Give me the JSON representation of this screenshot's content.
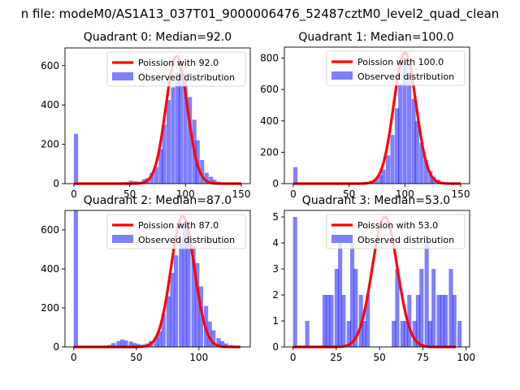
{
  "figure": {
    "title": "n file: modeM0/AS1A13_037T01_9000006476_52487cztM0_level2_quad_clean",
    "colors": {
      "hist": "#0000ff",
      "hist_alpha": 0.5,
      "poisson": "#ff0000",
      "text": "#000000"
    }
  },
  "chart_data": [
    {
      "type": "bar+line",
      "title": "Quadrant 0: Median=92.0",
      "median": 92.0,
      "xlim": [
        -8,
        158
      ],
      "ylim": [
        0,
        690
      ],
      "xticks": [
        0,
        50,
        100,
        150
      ],
      "yticks": [
        0,
        200,
        400,
        600
      ],
      "bin_width": 3.75,
      "poisson_peak": 648,
      "legend": {
        "placement": "upper right",
        "entries": [
          "Poission with 92.0",
          "Observed distribution"
        ]
      },
      "bins": [
        {
          "x": 0,
          "count": 253
        },
        {
          "x": 22,
          "count": 3
        },
        {
          "x": 30,
          "count": 3
        },
        {
          "x": 38,
          "count": 5
        },
        {
          "x": 45,
          "count": 8
        },
        {
          "x": 49,
          "count": 15
        },
        {
          "x": 53,
          "count": 12
        },
        {
          "x": 57,
          "count": 10
        },
        {
          "x": 61,
          "count": 22
        },
        {
          "x": 64,
          "count": 28
        },
        {
          "x": 68,
          "count": 55
        },
        {
          "x": 72,
          "count": 85
        },
        {
          "x": 76,
          "count": 175
        },
        {
          "x": 79,
          "count": 300
        },
        {
          "x": 83,
          "count": 425
        },
        {
          "x": 87,
          "count": 490
        },
        {
          "x": 91,
          "count": 565
        },
        {
          "x": 94,
          "count": 620
        },
        {
          "x": 98,
          "count": 560
        },
        {
          "x": 102,
          "count": 440
        },
        {
          "x": 106,
          "count": 325
        },
        {
          "x": 109,
          "count": 220
        },
        {
          "x": 113,
          "count": 120
        },
        {
          "x": 117,
          "count": 55
        },
        {
          "x": 121,
          "count": 35
        },
        {
          "x": 124,
          "count": 20
        },
        {
          "x": 128,
          "count": 10
        },
        {
          "x": 132,
          "count": 6
        },
        {
          "x": 136,
          "count": 4
        },
        {
          "x": 140,
          "count": 3
        },
        {
          "x": 145,
          "count": 2
        }
      ]
    },
    {
      "type": "bar+line",
      "title": "Quadrant 1: Median=100.0",
      "median": 100.0,
      "xlim": [
        -8,
        158
      ],
      "ylim": [
        0,
        870
      ],
      "xticks": [
        0,
        50,
        100,
        150
      ],
      "yticks": [
        0,
        200,
        400,
        600,
        800
      ],
      "bin_width": 3.75,
      "poisson_peak": 835,
      "legend": {
        "placement": "upper right",
        "entries": [
          "Poission with 100.0",
          "Observed distribution"
        ]
      },
      "bins": [
        {
          "x": 0,
          "count": 105
        },
        {
          "x": 30,
          "count": 3
        },
        {
          "x": 45,
          "count": 4
        },
        {
          "x": 53,
          "count": 5
        },
        {
          "x": 61,
          "count": 8
        },
        {
          "x": 64,
          "count": 12
        },
        {
          "x": 68,
          "count": 18
        },
        {
          "x": 72,
          "count": 30
        },
        {
          "x": 76,
          "count": 55
        },
        {
          "x": 79,
          "count": 90
        },
        {
          "x": 83,
          "count": 180
        },
        {
          "x": 87,
          "count": 310
        },
        {
          "x": 91,
          "count": 480
        },
        {
          "x": 94,
          "count": 640
        },
        {
          "x": 98,
          "count": 780
        },
        {
          "x": 102,
          "count": 690
        },
        {
          "x": 106,
          "count": 540
        },
        {
          "x": 109,
          "count": 400
        },
        {
          "x": 113,
          "count": 260
        },
        {
          "x": 117,
          "count": 150
        },
        {
          "x": 121,
          "count": 80
        },
        {
          "x": 124,
          "count": 45
        },
        {
          "x": 128,
          "count": 25
        },
        {
          "x": 132,
          "count": 12
        },
        {
          "x": 136,
          "count": 8
        },
        {
          "x": 140,
          "count": 4
        },
        {
          "x": 145,
          "count": 3
        },
        {
          "x": 150,
          "count": 2
        }
      ]
    },
    {
      "type": "bar+line",
      "title": "Quadrant 2: Median=87.0",
      "median": 87.0,
      "xlim": [
        -7,
        141
      ],
      "ylim": [
        0,
        700
      ],
      "xticks": [
        0,
        50,
        100
      ],
      "yticks": [
        0,
        200,
        400,
        600
      ],
      "bin_width": 3.35,
      "poisson_peak": 670,
      "legend": {
        "placement": "upper right",
        "entries": [
          "Poission with 87.0",
          "Observed distribution"
        ]
      },
      "bins": [
        {
          "x": 0,
          "count": 700
        },
        {
          "x": 13,
          "count": 3
        },
        {
          "x": 20,
          "count": 5
        },
        {
          "x": 27,
          "count": 10
        },
        {
          "x": 30,
          "count": 20
        },
        {
          "x": 34,
          "count": 30
        },
        {
          "x": 37,
          "count": 38
        },
        {
          "x": 40,
          "count": 33
        },
        {
          "x": 44,
          "count": 28
        },
        {
          "x": 47,
          "count": 20
        },
        {
          "x": 50,
          "count": 15
        },
        {
          "x": 54,
          "count": 12
        },
        {
          "x": 57,
          "count": 18
        },
        {
          "x": 60,
          "count": 30
        },
        {
          "x": 64,
          "count": 50
        },
        {
          "x": 67,
          "count": 80
        },
        {
          "x": 70,
          "count": 170
        },
        {
          "x": 74,
          "count": 260
        },
        {
          "x": 77,
          "count": 380
        },
        {
          "x": 80,
          "count": 470
        },
        {
          "x": 84,
          "count": 560
        },
        {
          "x": 87,
          "count": 640
        },
        {
          "x": 90,
          "count": 580
        },
        {
          "x": 94,
          "count": 520
        },
        {
          "x": 97,
          "count": 430
        },
        {
          "x": 100,
          "count": 310
        },
        {
          "x": 104,
          "count": 210
        },
        {
          "x": 107,
          "count": 130
        },
        {
          "x": 110,
          "count": 85
        },
        {
          "x": 114,
          "count": 45
        },
        {
          "x": 117,
          "count": 30
        },
        {
          "x": 120,
          "count": 18
        },
        {
          "x": 124,
          "count": 10
        },
        {
          "x": 127,
          "count": 6
        },
        {
          "x": 130,
          "count": 3
        }
      ]
    },
    {
      "type": "bar+line",
      "title": "Quadrant 3: Median=53.0",
      "median": 53.0,
      "xlim": [
        -5,
        102
      ],
      "ylim": [
        0,
        5.25
      ],
      "xticks": [
        0,
        25,
        50,
        75,
        100
      ],
      "yticks": [
        0,
        1,
        2,
        3,
        4,
        5
      ],
      "bin_width": 2.4,
      "poisson_peak": 5.0,
      "legend": {
        "placement": "upper right",
        "entries": [
          "Poission with 53.0",
          "Observed distribution"
        ]
      },
      "bins": [
        {
          "x": 0,
          "count": 5
        },
        {
          "x": 7,
          "count": 1
        },
        {
          "x": 17,
          "count": 2
        },
        {
          "x": 19,
          "count": 2
        },
        {
          "x": 21,
          "count": 2
        },
        {
          "x": 24,
          "count": 3
        },
        {
          "x": 26,
          "count": 4
        },
        {
          "x": 28,
          "count": 2
        },
        {
          "x": 31,
          "count": 1
        },
        {
          "x": 33,
          "count": 4
        },
        {
          "x": 35,
          "count": 3
        },
        {
          "x": 38,
          "count": 2
        },
        {
          "x": 40,
          "count": 1
        },
        {
          "x": 42,
          "count": 2
        },
        {
          "x": 57,
          "count": 1
        },
        {
          "x": 59,
          "count": 3
        },
        {
          "x": 62,
          "count": 1
        },
        {
          "x": 64,
          "count": 1
        },
        {
          "x": 66,
          "count": 2
        },
        {
          "x": 69,
          "count": 1
        },
        {
          "x": 71,
          "count": 2
        },
        {
          "x": 73,
          "count": 3
        },
        {
          "x": 76,
          "count": 4
        },
        {
          "x": 78,
          "count": 1
        },
        {
          "x": 80,
          "count": 3
        },
        {
          "x": 83,
          "count": 2
        },
        {
          "x": 85,
          "count": 2
        },
        {
          "x": 87,
          "count": 2
        },
        {
          "x": 90,
          "count": 3
        },
        {
          "x": 92,
          "count": 2
        },
        {
          "x": 95,
          "count": 1
        }
      ]
    }
  ]
}
